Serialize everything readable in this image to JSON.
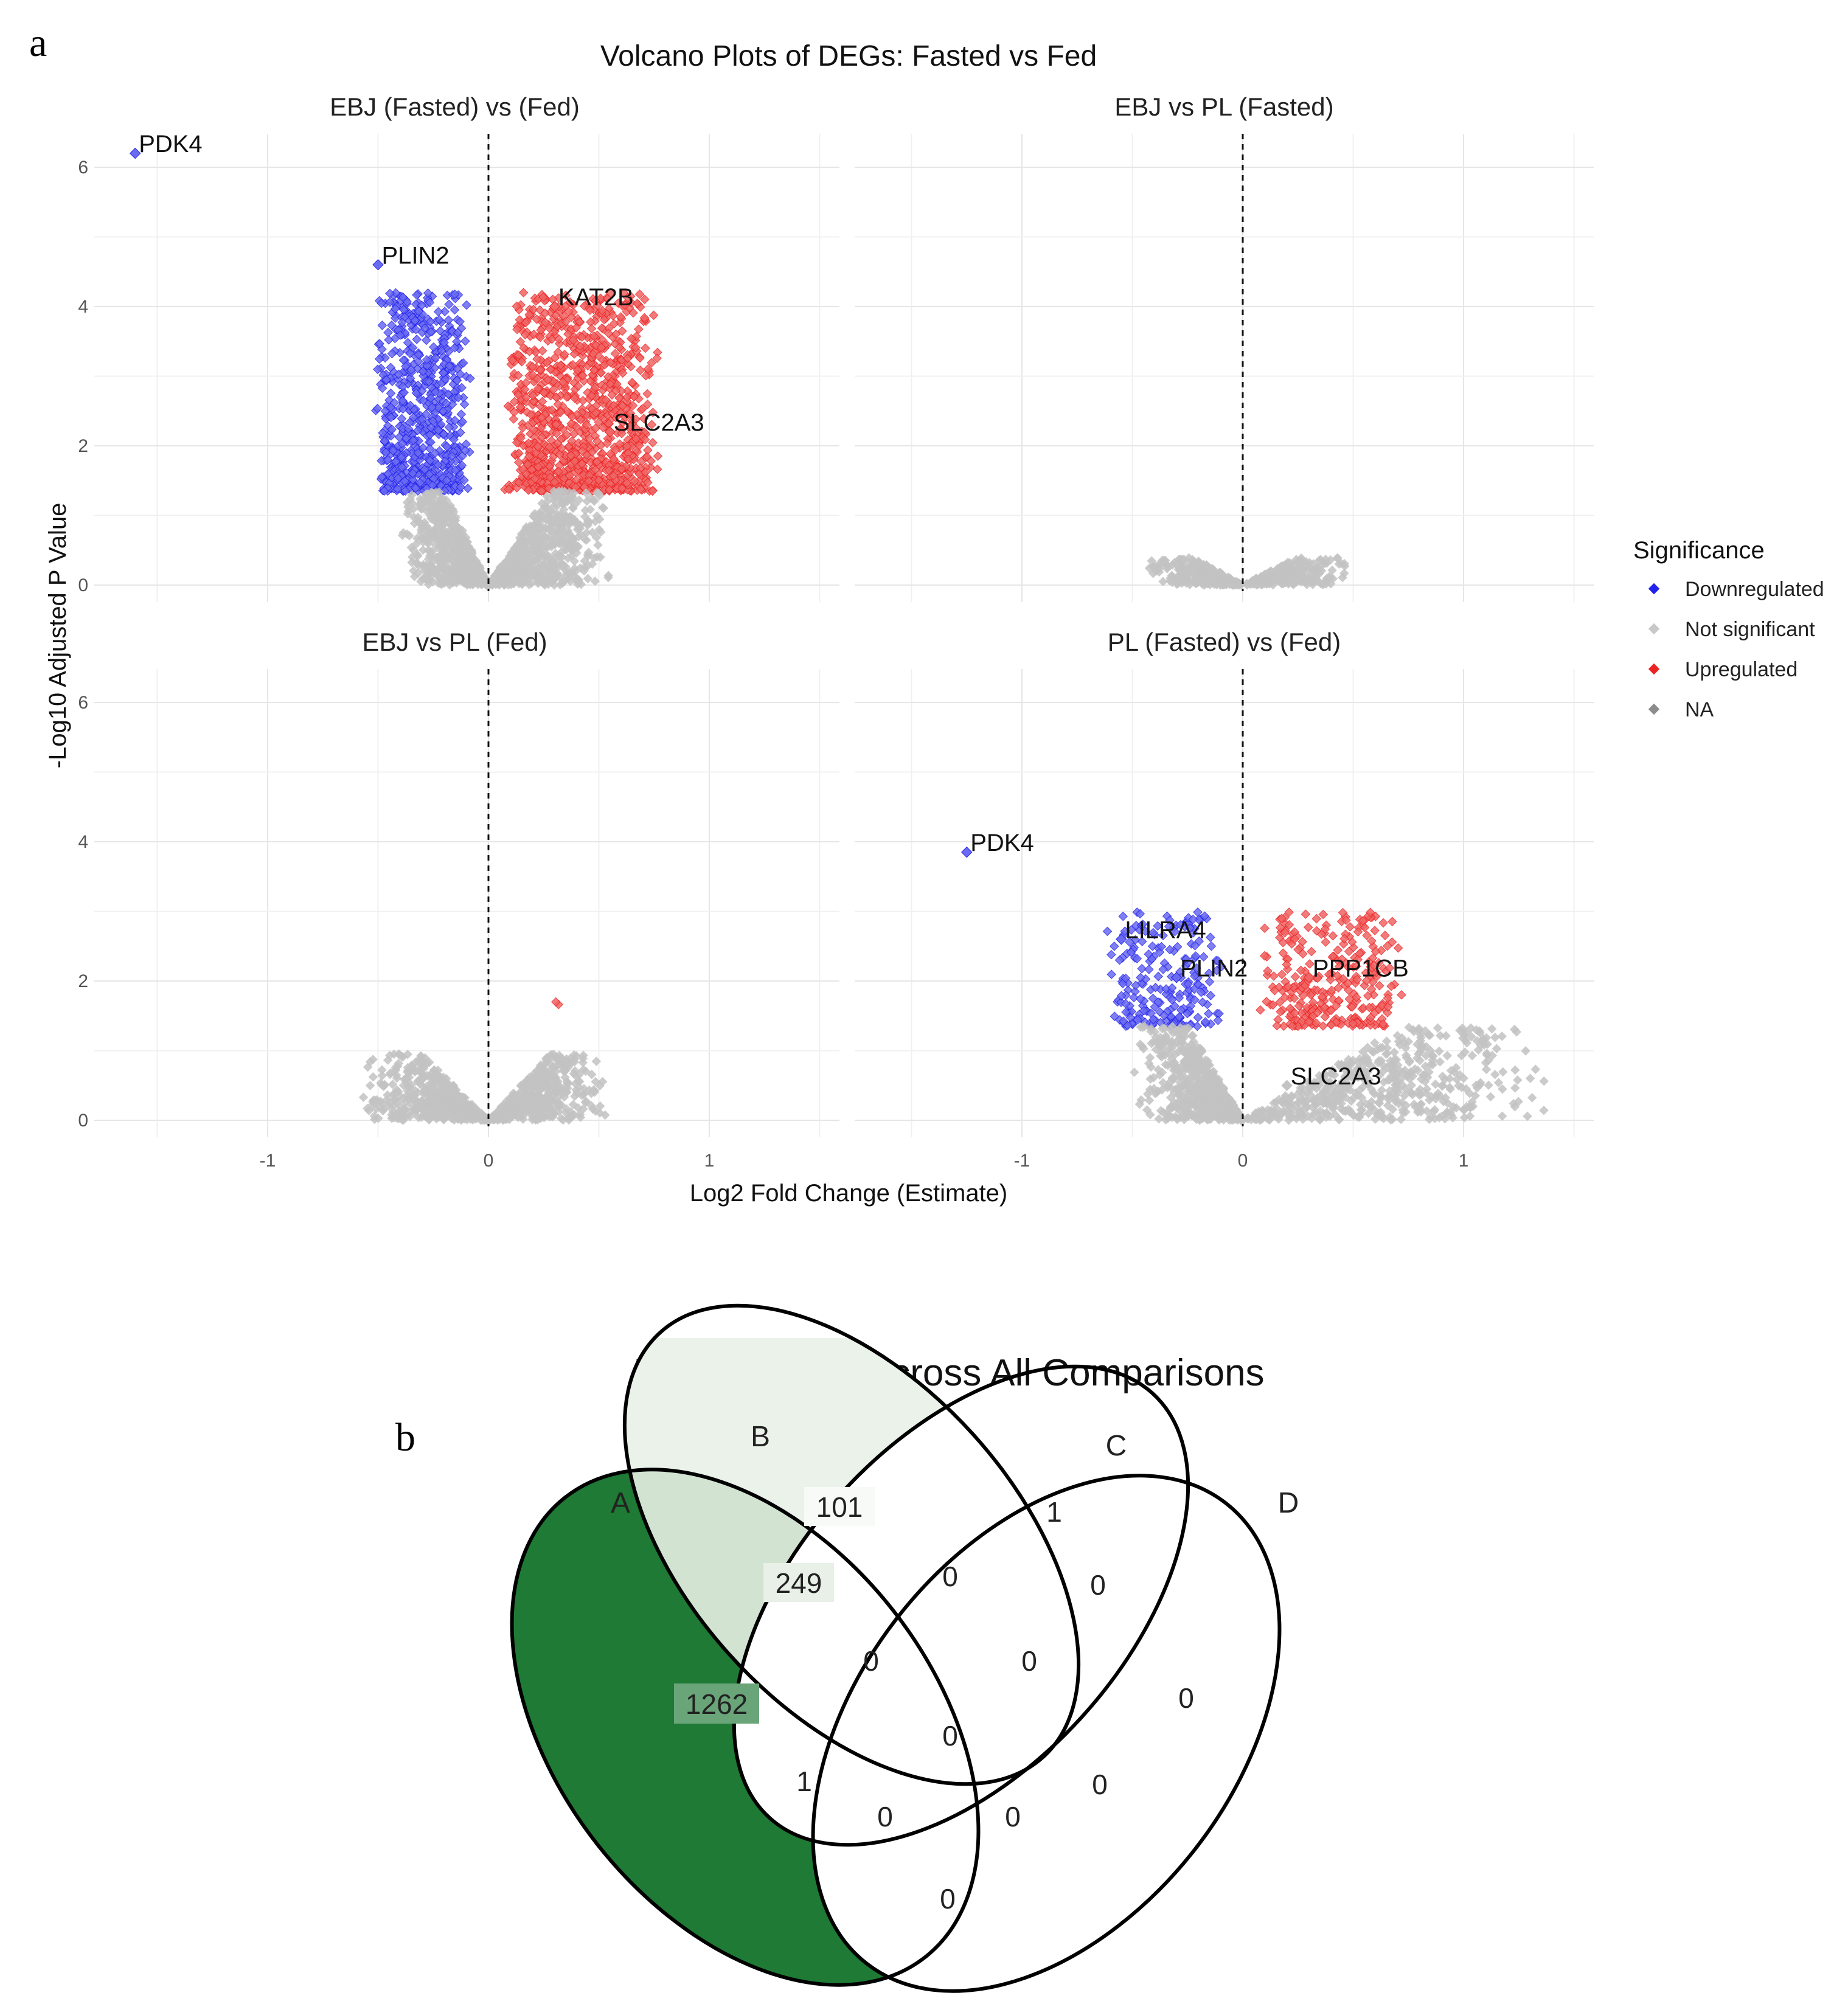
{
  "panel_a_label": "a",
  "panel_b_label": "b",
  "volcano": {
    "title": "Volcano Plots of DEGs: Fasted vs Fed",
    "xlabel": "Log2 Fold Change (Estimate)",
    "ylabel": "-Log10 Adjusted P Value",
    "x_ticks": [
      "-1",
      "0",
      "1"
    ],
    "y_ticks": [
      "0",
      "2",
      "4",
      "6"
    ],
    "legend": {
      "title": "Significance",
      "items": [
        {
          "label": "Downregulated",
          "color": "#2222ee"
        },
        {
          "label": "Not significant",
          "color": "#c8c8c8"
        },
        {
          "label": "Upregulated",
          "color": "#ee2222"
        },
        {
          "label": "NA",
          "color": "#8c8c8c"
        }
      ]
    }
  },
  "venn": {
    "title": "DEG Overlap Across All Comparisons",
    "set_labels": [
      "A",
      "B",
      "C",
      "D"
    ],
    "counts": {
      "B_only": "101",
      "C_only": "1",
      "A_B": "249",
      "B_C": "0",
      "C_D": "0",
      "A_only": "1262",
      "A_B_C": "0",
      "B_C_D": "0",
      "D_only": "0",
      "A_B_C_D": "0",
      "A_C": "1",
      "A_C_D": "0",
      "A_B_D": "0",
      "B_D": "0",
      "A_D": "0"
    }
  },
  "chart_data": [
    {
      "type": "scatter",
      "panel": "EBJ (Fasted) vs (Fed)",
      "xlim": [
        -1.5,
        1.5
      ],
      "ylim": [
        0,
        6.5
      ],
      "labels": [
        {
          "gene": "PDK4",
          "x": -1.6,
          "y": 6.2,
          "class": "Downregulated"
        },
        {
          "gene": "PLIN2",
          "x": -0.5,
          "y": 4.6,
          "class": "Downregulated"
        },
        {
          "gene": "KAT2B",
          "x": 0.3,
          "y": 4.0,
          "class": "Upregulated"
        },
        {
          "gene": "SLC2A3",
          "x": 0.55,
          "y": 2.2,
          "class": "Upregulated"
        }
      ],
      "groups": [
        {
          "class": "Downregulated",
          "x_range": [
            -0.5,
            -0.1
          ],
          "y_range": [
            1.35,
            4.2
          ],
          "approx_count": 700
        },
        {
          "class": "Upregulated",
          "x_range": [
            0.1,
            0.75
          ],
          "y_range": [
            1.35,
            4.2
          ],
          "approx_count": 1100
        },
        {
          "class": "Not significant",
          "x_range": [
            -0.4,
            0.55
          ],
          "y_range": [
            0,
            1.35
          ],
          "approx_count": 1200
        }
      ]
    },
    {
      "type": "scatter",
      "panel": "EBJ vs PL (Fasted)",
      "xlim": [
        -1.5,
        1.5
      ],
      "ylim": [
        0,
        6.5
      ],
      "labels": [],
      "groups": [
        {
          "class": "Not significant",
          "x_range": [
            -0.45,
            0.5
          ],
          "y_range": [
            0,
            0.4
          ],
          "approx_count": 500
        }
      ]
    },
    {
      "type": "scatter",
      "panel": "EBJ vs PL (Fed)",
      "xlim": [
        -1.5,
        1.5
      ],
      "ylim": [
        0,
        6.5
      ],
      "labels": [],
      "groups": [
        {
          "class": "Upregulated",
          "x_range": [
            0.28,
            0.32
          ],
          "y_range": [
            1.65,
            1.7
          ],
          "approx_count": 2
        },
        {
          "class": "Not significant",
          "x_range": [
            -0.6,
            0.55
          ],
          "y_range": [
            0,
            0.95
          ],
          "approx_count": 900
        }
      ]
    },
    {
      "type": "scatter",
      "panel": "PL (Fasted) vs (Fed)",
      "xlim": [
        -1.5,
        1.5
      ],
      "ylim": [
        0,
        6.5
      ],
      "labels": [
        {
          "gene": "PDK4",
          "x": -1.25,
          "y": 3.85,
          "class": "Downregulated"
        },
        {
          "gene": "LILRA4",
          "x": -0.55,
          "y": 2.6,
          "class": "Downregulated"
        },
        {
          "gene": "PLIN2",
          "x": -0.3,
          "y": 2.05,
          "class": "Downregulated"
        },
        {
          "gene": "PPP1CB",
          "x": 0.3,
          "y": 2.05,
          "class": "Upregulated"
        },
        {
          "gene": "SLC2A3",
          "x": 0.2,
          "y": 0.5,
          "class": "Not significant"
        }
      ],
      "groups": [
        {
          "class": "Downregulated",
          "x_range": [
            -0.6,
            -0.1
          ],
          "y_range": [
            1.35,
            3.0
          ],
          "approx_count": 220
        },
        {
          "class": "Upregulated",
          "x_range": [
            0.1,
            0.7
          ],
          "y_range": [
            1.35,
            3.0
          ],
          "approx_count": 300
        },
        {
          "class": "Not significant",
          "x_range": [
            -0.5,
            1.45
          ],
          "y_range": [
            0,
            1.35
          ],
          "approx_count": 1100
        }
      ]
    }
  ]
}
